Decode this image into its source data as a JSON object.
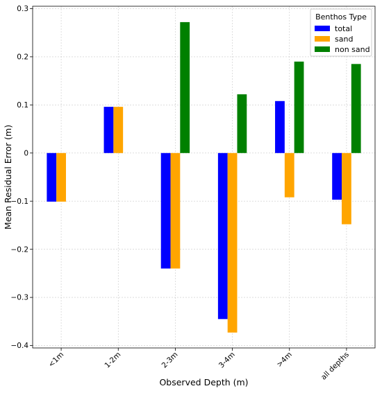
{
  "chart_data": {
    "type": "bar",
    "title": "",
    "xlabel": "Observed Depth (m)",
    "ylabel": "Mean Residual Error (m)",
    "categories": [
      "<1m",
      "1-2m",
      "2-3m",
      "3-4m",
      ">4m",
      "all depths"
    ],
    "series": [
      {
        "name": "total",
        "color": "#0000ff",
        "values": [
          -0.101,
          0.096,
          -0.24,
          -0.345,
          0.108,
          -0.097
        ]
      },
      {
        "name": "sand",
        "color": "#ffa500",
        "values": [
          -0.101,
          0.096,
          -0.24,
          -0.373,
          -0.092,
          -0.148
        ]
      },
      {
        "name": "non sand",
        "color": "#008000",
        "values": [
          null,
          null,
          0.272,
          0.122,
          0.19,
          0.185
        ]
      }
    ],
    "ylim": [
      -0.405,
      0.305
    ],
    "yticks": [
      0.3,
      0.2,
      0.1,
      0,
      -0.1,
      -0.2,
      -0.3,
      -0.4
    ],
    "ytick_labels": [
      "0.3",
      "0.2",
      "0.1",
      "0",
      "−0.1",
      "−0.2",
      "−0.3",
      "−0.4"
    ],
    "grid": true,
    "legend": {
      "title": "Benthos Type",
      "placement": "top-right"
    }
  }
}
